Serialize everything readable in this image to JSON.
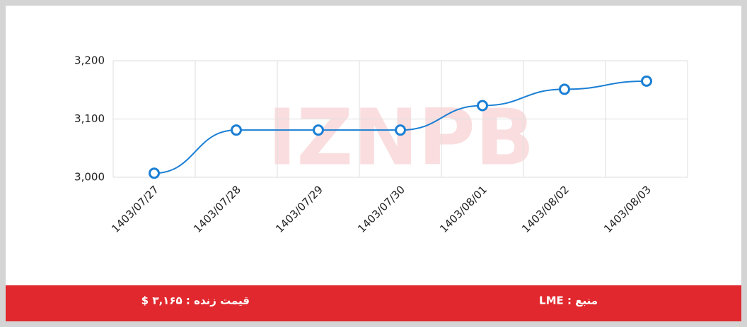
{
  "chart_data": {
    "type": "line",
    "categories": [
      "1403/07/27",
      "1403/07/28",
      "1403/07/29",
      "1403/07/30",
      "1403/08/01",
      "1403/08/02",
      "1403/08/03"
    ],
    "values": [
      3007,
      3081,
      3081,
      3081,
      3123,
      3151,
      3165
    ],
    "color": "#1a7fd4",
    "ylim": [
      3000,
      3200
    ],
    "yticks": [
      {
        "value": 3000,
        "label": "3,000"
      },
      {
        "value": 3100,
        "label": "3,100"
      },
      {
        "value": 3200,
        "label": "3,200"
      }
    ],
    "grid": true
  },
  "watermark": "IZNPB",
  "footer": {
    "source": "منبع : LME",
    "live_price": "قیمت زنده : ۳,۱۶۵ $"
  }
}
